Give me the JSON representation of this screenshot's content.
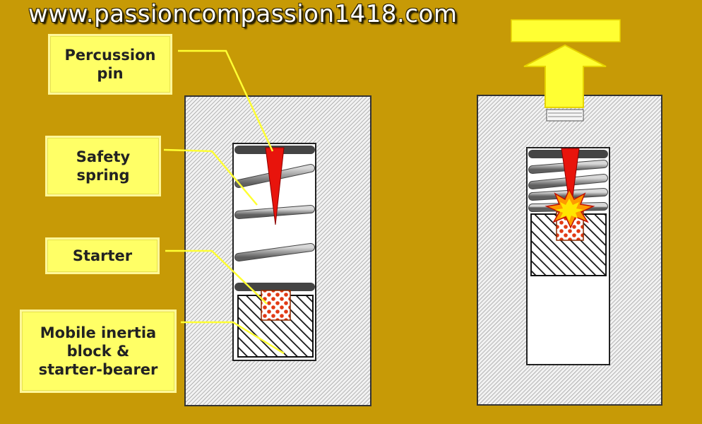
{
  "header": {
    "site_url": "www.passioncompassion1418.com"
  },
  "labels": {
    "percussion_pin": "Percussion\npin",
    "safety_spring": "Safety\nspring",
    "starter": "Starter",
    "inertia_block": "Mobile inertia\nblock &\nstarter-bearer"
  },
  "colors": {
    "background": "#c79a06",
    "label_fill": "#ffff66",
    "pin": "#e8140c",
    "arrow": "#ffff33",
    "explosion": "#ff9a00"
  }
}
